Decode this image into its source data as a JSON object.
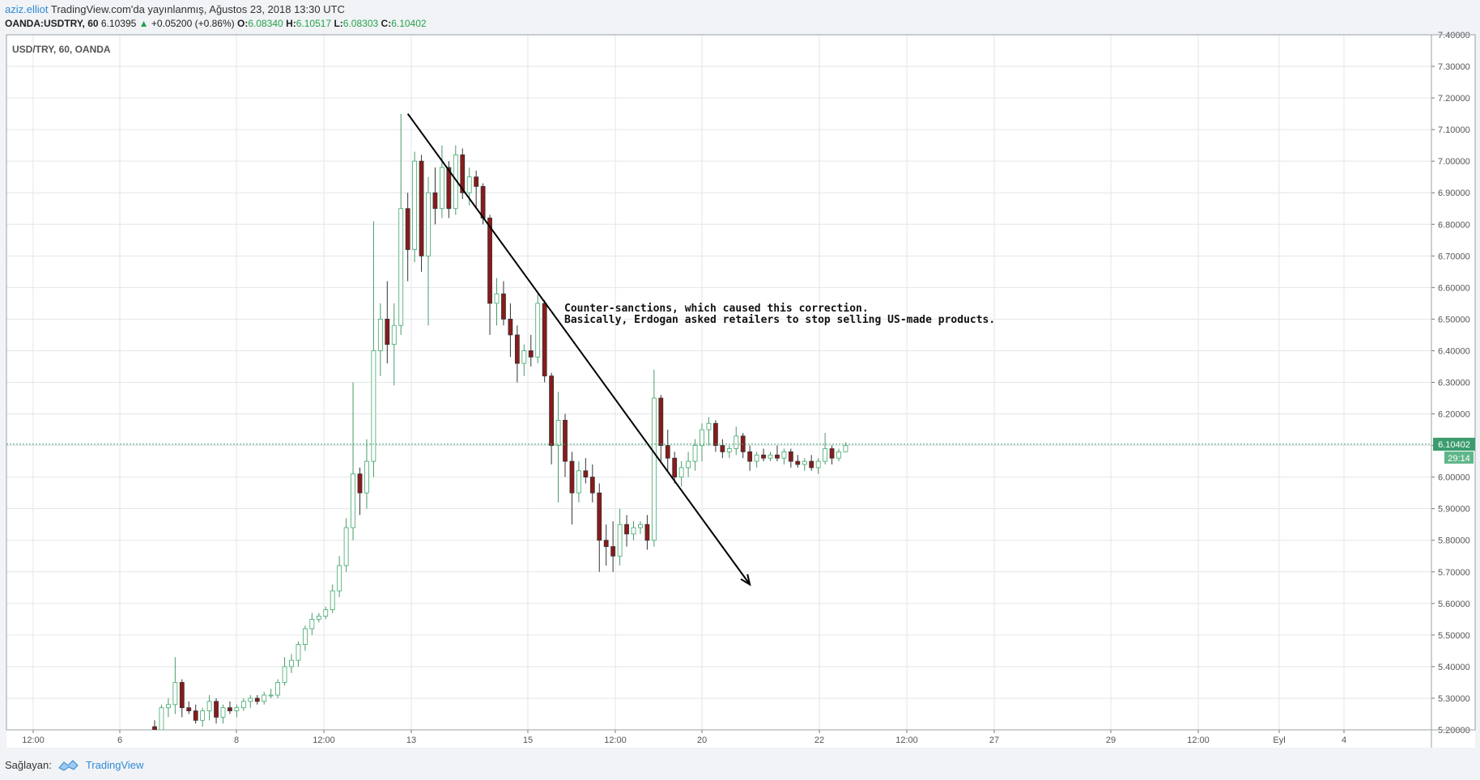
{
  "header": {
    "author": "aziz.elliot",
    "published": "TradingView.com'da yayınlanmış, Ağustos 23, 2018 13:30 UTC",
    "symbol": "OANDA:USDTRY, 60",
    "last": "6.10395",
    "change": "+0.05200 (+0.86%)",
    "open_label": "O:",
    "open": "6.08340",
    "high_label": "H:",
    "high": "6.10517",
    "low_label": "L:",
    "low": "6.08303",
    "close_label": "C:",
    "close": "6.10402"
  },
  "footer": {
    "provided_by": "Sağlayan:",
    "brand": "TradingView"
  },
  "colors": {
    "up": "#3ea86b",
    "down": "#8b1a1a",
    "grid": "#e3e6ea",
    "price_line": "#3c9c6e",
    "axis": "#555555"
  },
  "chart_data": {
    "type": "candlestick",
    "title": "USD/TRY, 60, OANDA",
    "ylim": [
      5.2,
      7.4
    ],
    "yticks": [
      "7.40000",
      "7.30000",
      "7.20000",
      "7.10000",
      "7.00000",
      "6.90000",
      "6.80000",
      "6.70000",
      "6.60000",
      "6.50000",
      "6.40000",
      "6.30000",
      "6.20000",
      "6.10000",
      "6.00000",
      "5.90000",
      "5.80000",
      "5.70000",
      "5.60000",
      "5.50000",
      "5.40000",
      "5.30000",
      "5.20000"
    ],
    "xticks": [
      "12:00",
      "6",
      "8",
      "12:00",
      "13",
      "15",
      "12:00",
      "20",
      "22",
      "12:00",
      "27",
      "29",
      "12:00",
      "Eyl",
      "4"
    ],
    "last_price_label": "6.10402",
    "countdown_label": "29:14",
    "last_price": 6.10402,
    "annotation": [
      "Counter-sanctions, which caused this correction.",
      "Basically, Erdogan asked retailers to stop selling US-made products."
    ],
    "trend_arrow": {
      "from": {
        "bar": 37,
        "price": 7.15
      },
      "to": {
        "bar": 87,
        "price": 5.66
      }
    },
    "candles": [
      [
        5.21,
        5.23,
        5.19,
        5.2
      ],
      [
        5.2,
        5.28,
        5.19,
        5.27
      ],
      [
        5.27,
        5.3,
        5.24,
        5.28
      ],
      [
        5.28,
        5.43,
        5.25,
        5.35
      ],
      [
        5.35,
        5.36,
        5.24,
        5.27
      ],
      [
        5.27,
        5.29,
        5.25,
        5.26
      ],
      [
        5.26,
        5.28,
        5.22,
        5.23
      ],
      [
        5.23,
        5.27,
        5.21,
        5.26
      ],
      [
        5.26,
        5.31,
        5.23,
        5.29
      ],
      [
        5.29,
        5.3,
        5.22,
        5.24
      ],
      [
        5.24,
        5.28,
        5.22,
        5.27
      ],
      [
        5.27,
        5.29,
        5.25,
        5.26
      ],
      [
        5.26,
        5.28,
        5.24,
        5.27
      ],
      [
        5.27,
        5.3,
        5.26,
        5.29
      ],
      [
        5.29,
        5.31,
        5.27,
        5.3
      ],
      [
        5.3,
        5.31,
        5.28,
        5.29
      ],
      [
        5.29,
        5.32,
        5.28,
        5.31
      ],
      [
        5.31,
        5.33,
        5.3,
        5.31
      ],
      [
        5.31,
        5.36,
        5.3,
        5.35
      ],
      [
        5.35,
        5.43,
        5.34,
        5.4
      ],
      [
        5.4,
        5.44,
        5.38,
        5.42
      ],
      [
        5.42,
        5.48,
        5.4,
        5.47
      ],
      [
        5.47,
        5.53,
        5.45,
        5.52
      ],
      [
        5.52,
        5.57,
        5.5,
        5.55
      ],
      [
        5.55,
        5.57,
        5.54,
        5.56
      ],
      [
        5.56,
        5.59,
        5.55,
        5.58
      ],
      [
        5.58,
        5.66,
        5.57,
        5.64
      ],
      [
        5.64,
        5.75,
        5.62,
        5.72
      ],
      [
        5.72,
        5.87,
        5.7,
        5.84
      ],
      [
        5.84,
        6.3,
        5.8,
        6.01
      ],
      [
        6.01,
        6.03,
        5.88,
        5.95
      ],
      [
        5.95,
        6.12,
        5.9,
        6.05
      ],
      [
        6.05,
        6.81,
        6.0,
        6.4
      ],
      [
        6.4,
        6.55,
        6.32,
        6.5
      ],
      [
        6.5,
        6.62,
        6.36,
        6.42
      ],
      [
        6.42,
        6.55,
        6.29,
        6.48
      ],
      [
        6.48,
        7.15,
        6.45,
        6.85
      ],
      [
        6.85,
        6.9,
        6.62,
        6.72
      ],
      [
        6.72,
        7.03,
        6.68,
        7.0
      ],
      [
        7.0,
        7.02,
        6.65,
        6.7
      ],
      [
        6.7,
        6.95,
        6.48,
        6.9
      ],
      [
        6.9,
        6.98,
        6.8,
        6.85
      ],
      [
        6.85,
        7.05,
        6.82,
        6.98
      ],
      [
        6.98,
        7.0,
        6.82,
        6.85
      ],
      [
        6.85,
        7.05,
        6.83,
        7.02
      ],
      [
        7.02,
        7.04,
        6.88,
        6.9
      ],
      [
        6.9,
        6.98,
        6.86,
        6.95
      ],
      [
        6.95,
        6.97,
        6.85,
        6.92
      ],
      [
        6.92,
        6.93,
        6.8,
        6.82
      ],
      [
        6.82,
        6.83,
        6.45,
        6.55
      ],
      [
        6.55,
        6.63,
        6.48,
        6.58
      ],
      [
        6.58,
        6.62,
        6.48,
        6.5
      ],
      [
        6.5,
        6.55,
        6.38,
        6.45
      ],
      [
        6.45,
        6.48,
        6.3,
        6.36
      ],
      [
        6.36,
        6.42,
        6.32,
        6.4
      ],
      [
        6.4,
        6.45,
        6.35,
        6.38
      ],
      [
        6.38,
        6.58,
        6.36,
        6.55
      ],
      [
        6.55,
        6.56,
        6.3,
        6.32
      ],
      [
        6.32,
        6.33,
        6.04,
        6.1
      ],
      [
        6.1,
        6.27,
        5.92,
        6.18
      ],
      [
        6.18,
        6.2,
        6.0,
        6.05
      ],
      [
        6.05,
        6.08,
        5.85,
        5.95
      ],
      [
        5.95,
        6.05,
        5.92,
        6.02
      ],
      [
        6.02,
        6.06,
        5.98,
        6.0
      ],
      [
        6.0,
        6.04,
        5.92,
        5.95
      ],
      [
        5.95,
        5.98,
        5.7,
        5.8
      ],
      [
        5.8,
        5.85,
        5.72,
        5.78
      ],
      [
        5.78,
        5.86,
        5.7,
        5.75
      ],
      [
        5.75,
        5.9,
        5.72,
        5.85
      ],
      [
        5.85,
        5.88,
        5.78,
        5.82
      ],
      [
        5.82,
        5.86,
        5.8,
        5.84
      ],
      [
        5.84,
        5.86,
        5.82,
        5.85
      ],
      [
        5.85,
        5.88,
        5.77,
        5.8
      ],
      [
        5.8,
        6.34,
        5.78,
        6.25
      ],
      [
        6.25,
        6.26,
        6.05,
        6.1
      ],
      [
        6.1,
        6.15,
        6.02,
        6.06
      ],
      [
        6.06,
        6.08,
        5.98,
        6.0
      ],
      [
        6.0,
        6.05,
        5.97,
        6.03
      ],
      [
        6.03,
        6.08,
        6.0,
        6.05
      ],
      [
        6.05,
        6.12,
        6.02,
        6.1
      ],
      [
        6.1,
        6.17,
        6.05,
        6.15
      ],
      [
        6.15,
        6.19,
        6.1,
        6.17
      ],
      [
        6.17,
        6.18,
        6.08,
        6.1
      ],
      [
        6.1,
        6.12,
        6.06,
        6.08
      ],
      [
        6.08,
        6.1,
        6.06,
        6.09
      ],
      [
        6.09,
        6.16,
        6.07,
        6.13
      ],
      [
        6.13,
        6.14,
        6.06,
        6.08
      ],
      [
        6.08,
        6.1,
        6.02,
        6.05
      ],
      [
        6.05,
        6.08,
        6.03,
        6.07
      ],
      [
        6.07,
        6.09,
        6.05,
        6.06
      ],
      [
        6.06,
        6.08,
        6.05,
        6.07
      ],
      [
        6.07,
        6.1,
        6.05,
        6.06
      ],
      [
        6.06,
        6.09,
        6.04,
        6.08
      ],
      [
        6.08,
        6.09,
        6.03,
        6.05
      ],
      [
        6.05,
        6.07,
        6.03,
        6.04
      ],
      [
        6.04,
        6.06,
        6.02,
        6.05
      ],
      [
        6.05,
        6.07,
        6.02,
        6.03
      ],
      [
        6.03,
        6.06,
        6.01,
        6.05
      ],
      [
        6.05,
        6.14,
        6.04,
        6.09
      ],
      [
        6.09,
        6.1,
        6.04,
        6.06
      ],
      [
        6.06,
        6.09,
        6.05,
        6.08
      ],
      [
        6.08,
        6.11,
        6.08,
        6.1
      ]
    ]
  }
}
